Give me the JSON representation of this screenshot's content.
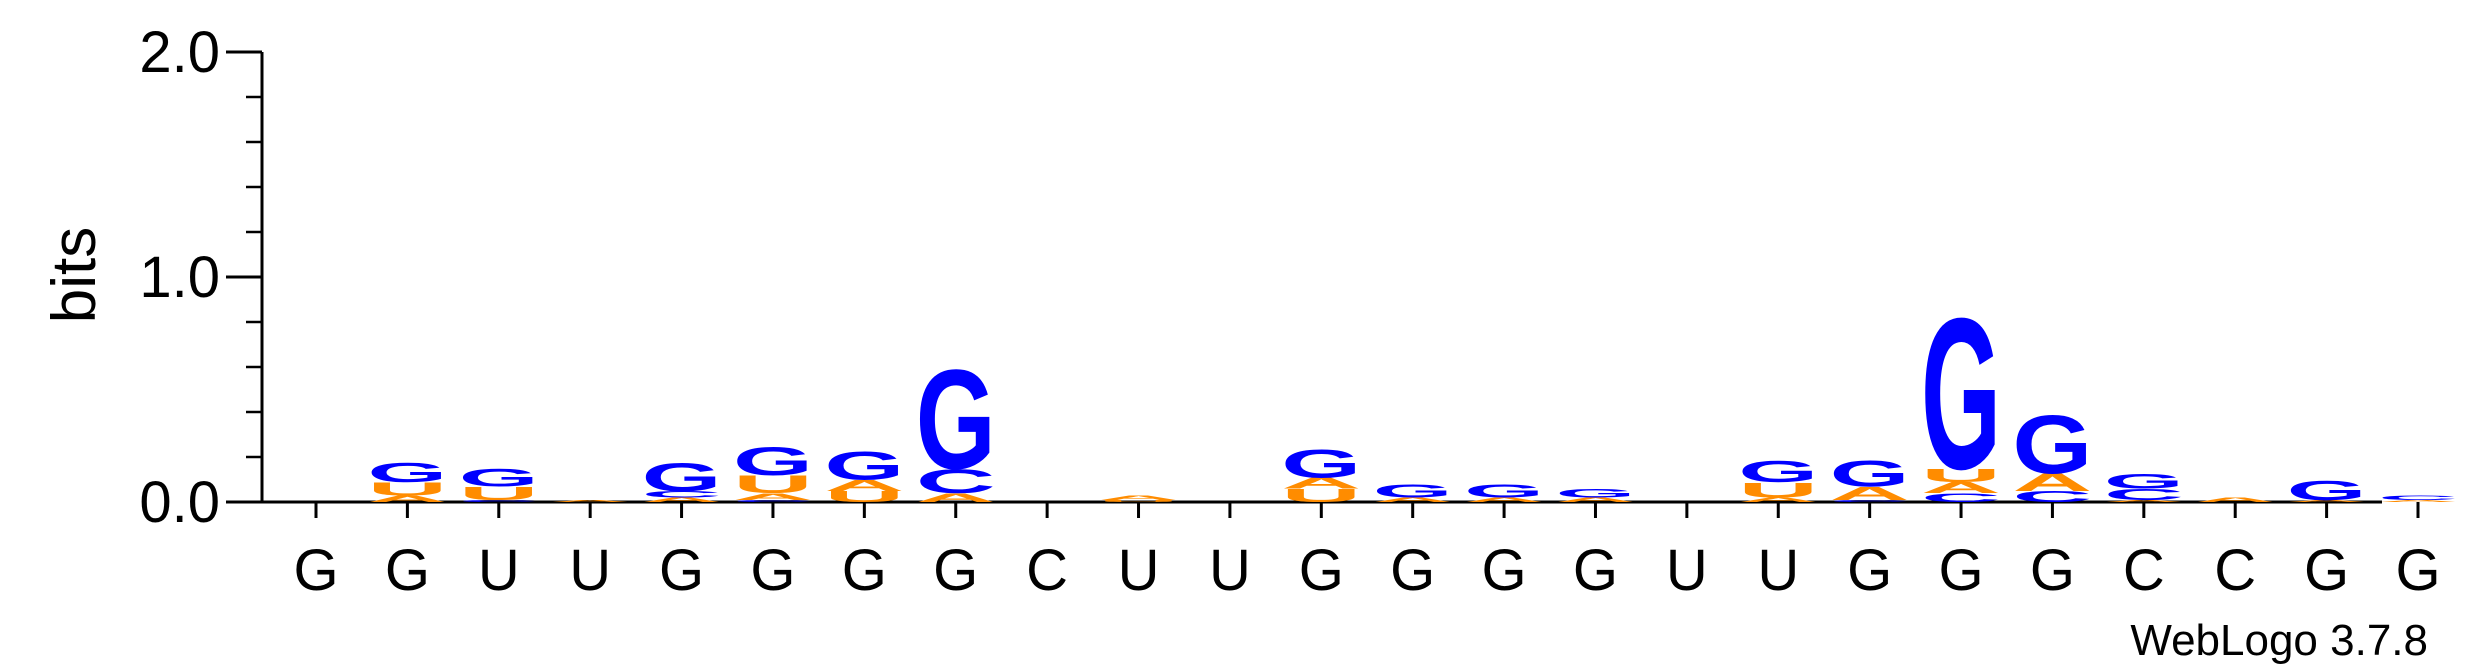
{
  "chart_data": {
    "type": "sequence-logo",
    "ylabel": "bits",
    "ylim": [
      0,
      2.0
    ],
    "yticks": [
      "0.0",
      "1.0",
      "2.0"
    ],
    "x_tick_labels": [
      "G",
      "G",
      "U",
      "U",
      "G",
      "G",
      "G",
      "G",
      "C",
      "U",
      "U",
      "G",
      "G",
      "G",
      "G",
      "U",
      "U",
      "G",
      "G",
      "G",
      "C",
      "C",
      "G",
      "G"
    ],
    "colors": {
      "G": "#0000ff",
      "U": "#ff8c00",
      "A": "#ff8c00",
      "C": "#0000ff"
    },
    "columns": [
      [],
      [
        {
          "letter": "A",
          "bits": 0.03
        },
        {
          "letter": "U",
          "bits": 0.06
        },
        {
          "letter": "G",
          "bits": 0.09
        }
      ],
      [
        {
          "letter": "C",
          "bits": 0.01
        },
        {
          "letter": "U",
          "bits": 0.06
        },
        {
          "letter": "G",
          "bits": 0.08
        }
      ],
      [
        {
          "letter": "A",
          "bits": 0.01
        }
      ],
      [
        {
          "letter": "A",
          "bits": 0.02
        },
        {
          "letter": "C",
          "bits": 0.03
        },
        {
          "letter": "G",
          "bits": 0.13
        }
      ],
      [
        {
          "letter": "C",
          "bits": 0.01
        },
        {
          "letter": "A",
          "bits": 0.03
        },
        {
          "letter": "U",
          "bits": 0.08
        },
        {
          "letter": "G",
          "bits": 0.13
        }
      ],
      [
        {
          "letter": "U",
          "bits": 0.05
        },
        {
          "letter": "A",
          "bits": 0.05
        },
        {
          "letter": "G",
          "bits": 0.13
        }
      ],
      [
        {
          "letter": "A",
          "bits": 0.04
        },
        {
          "letter": "C",
          "bits": 0.11
        },
        {
          "letter": "G",
          "bits": 0.46
        }
      ],
      [],
      [
        {
          "letter": "U",
          "bits": 0.01
        },
        {
          "letter": "A",
          "bits": 0.02
        }
      ],
      [],
      [
        {
          "letter": "U",
          "bits": 0.06
        },
        {
          "letter": "A",
          "bits": 0.05
        },
        {
          "letter": "G",
          "bits": 0.13
        }
      ],
      [
        {
          "letter": "A",
          "bits": 0.02
        },
        {
          "letter": "G",
          "bits": 0.06
        }
      ],
      [
        {
          "letter": "A",
          "bits": 0.02
        },
        {
          "letter": "G",
          "bits": 0.06
        }
      ],
      [
        {
          "letter": "A",
          "bits": 0.02
        },
        {
          "letter": "G",
          "bits": 0.04
        }
      ],
      [],
      [
        {
          "letter": "A",
          "bits": 0.02
        },
        {
          "letter": "U",
          "bits": 0.07
        },
        {
          "letter": "G",
          "bits": 0.1
        }
      ],
      [
        {
          "letter": "C",
          "bits": 0.01
        },
        {
          "letter": "A",
          "bits": 0.06
        },
        {
          "letter": "G",
          "bits": 0.12
        }
      ],
      [
        {
          "letter": "C",
          "bits": 0.04
        },
        {
          "letter": "A",
          "bits": 0.05
        },
        {
          "letter": "U",
          "bits": 0.06
        },
        {
          "letter": "G",
          "bits": 0.7
        }
      ],
      [
        {
          "letter": "C",
          "bits": 0.05
        },
        {
          "letter": "A",
          "bits": 0.08
        },
        {
          "letter": "G",
          "bits": 0.27
        }
      ],
      [
        {
          "letter": "A",
          "bits": 0.01
        },
        {
          "letter": "C",
          "bits": 0.05
        },
        {
          "letter": "G",
          "bits": 0.07
        }
      ],
      [
        {
          "letter": "A",
          "bits": 0.02
        }
      ],
      [
        {
          "letter": "A",
          "bits": 0.01
        },
        {
          "letter": "G",
          "bits": 0.09
        }
      ],
      [
        {
          "letter": "A",
          "bits": 0.01
        },
        {
          "letter": "C",
          "bits": 0.02
        }
      ]
    ]
  },
  "watermark": "WebLogo 3.7.8"
}
